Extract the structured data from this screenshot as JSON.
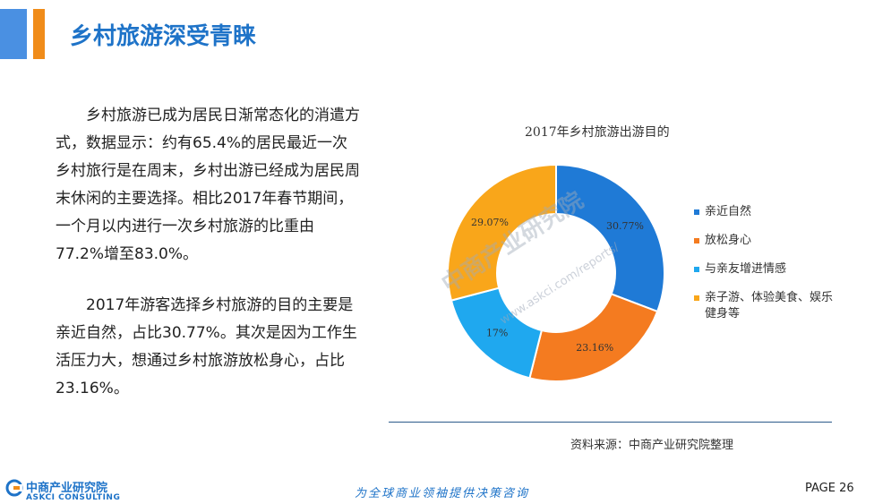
{
  "header": {
    "title": "乡村旅游深受青睐",
    "colors": {
      "primary": "#4a90e2",
      "accent": "#f08c1a"
    }
  },
  "body": {
    "paragraph1": "乡村旅游已成为居民日渐常态化的消遣方式，数据显示：约有65.4%的居民最近一次乡村旅行是在周末，乡村出游已经成为居民周末休闲的主要选择。相比2017年春节期间，一个月以内进行一次乡村旅游的比重由77.2%增至83.0%。",
    "paragraph2": "2017年游客选择乡村旅游的目的主要是亲近自然，占比30.77%。其次是因为工作生活压力大，想通过乡村旅游放松身心，占比23.16%。"
  },
  "chart_data": {
    "type": "pie",
    "title": "2017年乡村旅游出游目的",
    "donut": true,
    "slices": [
      {
        "label": "亲近自然",
        "value": 30.77,
        "display": "30.77%",
        "color": "#1f7ad6"
      },
      {
        "label": "放松身心",
        "value": 23.16,
        "display": "23.16%",
        "color": "#f47b20"
      },
      {
        "label": "与亲友增进情感",
        "value": 17.0,
        "display": "17%",
        "color": "#1fa8ef"
      },
      {
        "label": "亲子游、体验美食、娱乐健身等",
        "value": 29.07,
        "display": "29.07%",
        "color": "#f9a61a"
      }
    ],
    "legend_position": "right"
  },
  "footer": {
    "source": "资料来源：中商产业研究院整理",
    "logo_cn": "中商产业研究院",
    "logo_en": "ASKCI CONSULTING",
    "slogan": "为全球商业领袖提供决策咨询",
    "page": "PAGE  26",
    "watermark": "中商产业研究院",
    "watermark_url": "www.askci.com/reports/"
  }
}
